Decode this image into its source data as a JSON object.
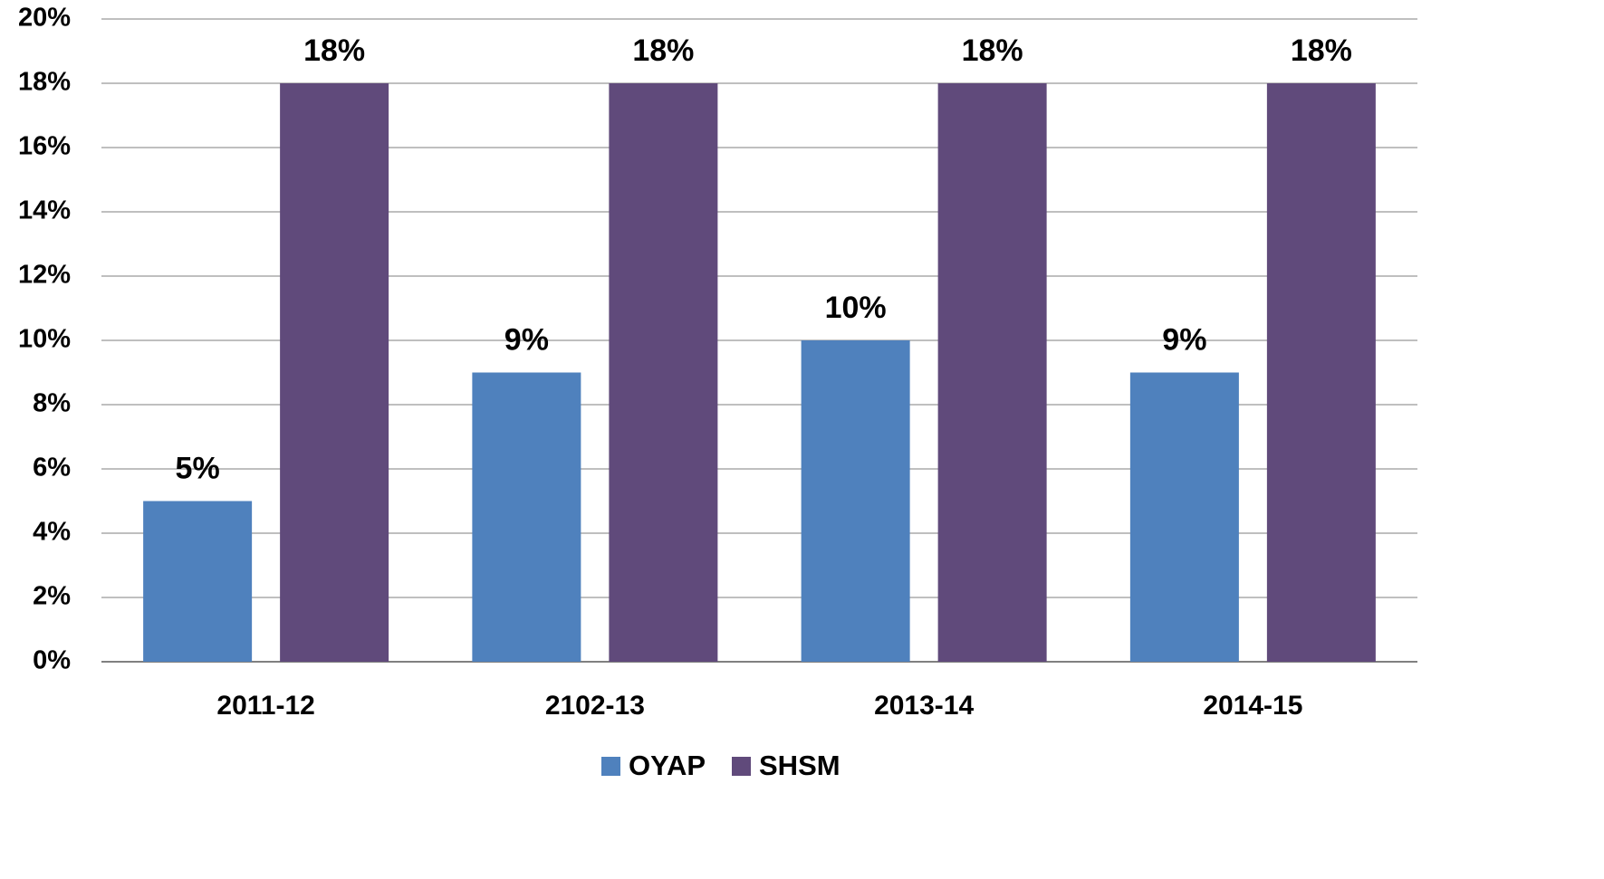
{
  "chart_data": {
    "type": "bar",
    "categories": [
      "2011-12",
      "2102-13",
      "2013-14",
      "2014-15"
    ],
    "series": [
      {
        "name": "OYAP",
        "color": "#4f81bd",
        "values": [
          5,
          9,
          10,
          9
        ],
        "value_labels": [
          "5%",
          "9%",
          "10%",
          "9%"
        ]
      },
      {
        "name": "SHSM",
        "color": "#604a7b",
        "values": [
          18,
          18,
          18,
          18
        ],
        "value_labels": [
          "18%",
          "18%",
          "18%",
          "18%"
        ]
      }
    ],
    "ylim": [
      0,
      20
    ],
    "yticks": [
      {
        "value": 0,
        "label": "0%"
      },
      {
        "value": 2,
        "label": "2%"
      },
      {
        "value": 4,
        "label": "4%"
      },
      {
        "value": 6,
        "label": "6%"
      },
      {
        "value": 8,
        "label": "8%"
      },
      {
        "value": 10,
        "label": "10%"
      },
      {
        "value": 12,
        "label": "12%"
      },
      {
        "value": 14,
        "label": "14%"
      },
      {
        "value": 16,
        "label": "16%"
      },
      {
        "value": 18,
        "label": "18%"
      },
      {
        "value": 20,
        "label": "20%"
      }
    ],
    "grid": true,
    "legend": "bottom"
  }
}
